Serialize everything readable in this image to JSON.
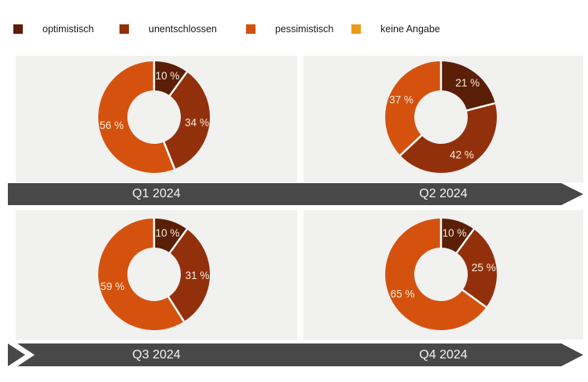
{
  "legend": {
    "items": [
      {
        "label": "optimistisch",
        "color": "#5b1e06"
      },
      {
        "label": "unentschlossen",
        "color": "#93300c"
      },
      {
        "label": "pessimistisch",
        "color": "#d5520e"
      },
      {
        "label": "keine Angabe",
        "color": "#ec9b18"
      }
    ]
  },
  "chart_data": [
    {
      "type": "pie",
      "title": "Q1 2024",
      "categories": [
        "optimistisch",
        "unentschlossen",
        "pessimistisch",
        "keine Angabe"
      ],
      "values": [
        10,
        34,
        56,
        0
      ],
      "labels": [
        "10 %",
        "34 %",
        "56 %",
        ""
      ],
      "unit": "%",
      "donut": true,
      "start_angle_deg": 0,
      "direction": "clockwise",
      "legend_position": "top"
    },
    {
      "type": "pie",
      "title": "Q2 2024",
      "categories": [
        "optimistisch",
        "unentschlossen",
        "pessimistisch",
        "keine Angabe"
      ],
      "values": [
        21,
        42,
        37,
        0
      ],
      "labels": [
        "21 %",
        "42 %",
        "37 %",
        ""
      ],
      "unit": "%",
      "donut": true,
      "start_angle_deg": 0,
      "direction": "clockwise",
      "legend_position": "top"
    },
    {
      "type": "pie",
      "title": "Q3 2024",
      "categories": [
        "optimistisch",
        "unentschlossen",
        "pessimistisch",
        "keine Angabe"
      ],
      "values": [
        10,
        31,
        59,
        0
      ],
      "labels": [
        "10 %",
        "31 %",
        "59 %",
        ""
      ],
      "unit": "%",
      "donut": true,
      "start_angle_deg": 0,
      "direction": "clockwise",
      "legend_position": "top"
    },
    {
      "type": "pie",
      "title": "Q4 2024",
      "categories": [
        "optimistisch",
        "unentschlossen",
        "pessimistisch",
        "keine Angabe"
      ],
      "values": [
        10,
        25,
        65,
        0
      ],
      "labels": [
        "10 %",
        "25 %",
        "65 %",
        ""
      ],
      "unit": "%",
      "donut": true,
      "start_angle_deg": 0,
      "direction": "clockwise",
      "legend_position": "top"
    }
  ],
  "banners": [
    {
      "labels": [
        "Q1 2024",
        "Q2 2024"
      ]
    },
    {
      "labels": [
        "Q3 2024",
        "Q4 2024"
      ]
    }
  ],
  "colors": {
    "banner": "#484848",
    "banner_text": "#f2f2f2",
    "panel_background": "#f1f1f0",
    "slice_label": "#f5ecd9",
    "separator": "#ffffff"
  }
}
